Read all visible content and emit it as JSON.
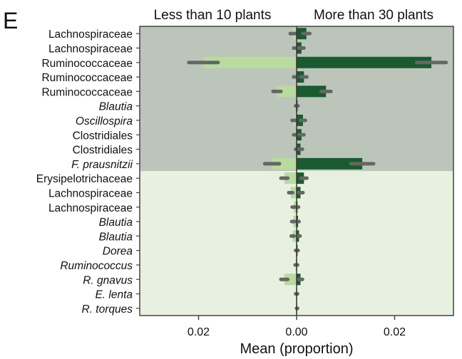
{
  "panel_label": "E",
  "chart_data": {
    "type": "bar",
    "orientation": "horizontal-diverging",
    "left_header": "Less than 10 plants",
    "right_header": "More than 30 plants",
    "xlabel": "Mean (proportion)",
    "xlim": [
      -0.032,
      0.032
    ],
    "xticks": [
      {
        "value": -0.02,
        "label": "0.02"
      },
      {
        "value": 0.0,
        "label": "0.00"
      },
      {
        "value": 0.02,
        "label": "0.02"
      }
    ],
    "shaded_region": {
      "from_row": 0,
      "to_row": 9,
      "color": "#bcc5ba"
    },
    "background_color": "#e8f1df",
    "left_color": "#b9dba0",
    "right_color": "#1b5a30",
    "error_color": "#666666",
    "categories": [
      {
        "name": "Lachnospiraceae",
        "italic": false
      },
      {
        "name": "Lachnospiraceae",
        "italic": false
      },
      {
        "name": "Ruminococcaceae",
        "italic": false
      },
      {
        "name": "Ruminococcaceae",
        "italic": false
      },
      {
        "name": "Ruminococcaceae",
        "italic": false
      },
      {
        "name": "Blautia",
        "italic": true
      },
      {
        "name": "Oscillospira",
        "italic": true
      },
      {
        "name": "Clostridiales",
        "italic": false
      },
      {
        "name": "Clostridiales",
        "italic": false
      },
      {
        "name": "F. prausnitzii",
        "italic": true
      },
      {
        "name": "Erysipelotrichaceae",
        "italic": false
      },
      {
        "name": "Lachnospiraceae",
        "italic": false
      },
      {
        "name": "Lachnospiraceae",
        "italic": false
      },
      {
        "name": "Blautia",
        "italic": true
      },
      {
        "name": "Blautia",
        "italic": true
      },
      {
        "name": "Dorea",
        "italic": true
      },
      {
        "name": "Ruminococcus",
        "italic": true
      },
      {
        "name": "R. gnavus",
        "italic": true
      },
      {
        "name": "E. lenta",
        "italic": true
      },
      {
        "name": "R. torques",
        "italic": true
      }
    ],
    "series": [
      {
        "name": "Less than 10 plants",
        "values": [
          0.0008,
          0.0003,
          0.019,
          0.0003,
          0.004,
          0.0001,
          0.0006,
          0.0003,
          0.0001,
          0.005,
          0.0025,
          0.0012,
          0.0006,
          0.0007,
          0.0008,
          0.0001,
          0.0002,
          0.0025,
          0.0001,
          0.0
        ],
        "errors": [
          0.0005,
          0.0003,
          0.003,
          0.0003,
          0.0008,
          0.0001,
          0.0003,
          0.0003,
          0.0001,
          0.0015,
          0.0007,
          0.0004,
          0.0003,
          0.0003,
          0.0003,
          0.0001,
          0.0001,
          0.0007,
          0.0001,
          0.0
        ]
      },
      {
        "name": "More than 30 plants",
        "values": [
          0.002,
          0.001,
          0.0275,
          0.0015,
          0.006,
          0.0002,
          0.0013,
          0.001,
          0.0008,
          0.0134,
          0.0015,
          0.0008,
          0.0002,
          0.0003,
          0.0005,
          0.0002,
          0.0001,
          0.0008,
          0.0001,
          0.0001
        ],
        "errors": [
          0.0007,
          0.0005,
          0.003,
          0.0006,
          0.001,
          0.0001,
          0.0005,
          0.0005,
          0.0004,
          0.0023,
          0.0006,
          0.0005,
          0.0002,
          0.0002,
          0.0002,
          0.0001,
          0.0001,
          0.0004,
          0.0001,
          0.0001
        ]
      }
    ]
  }
}
